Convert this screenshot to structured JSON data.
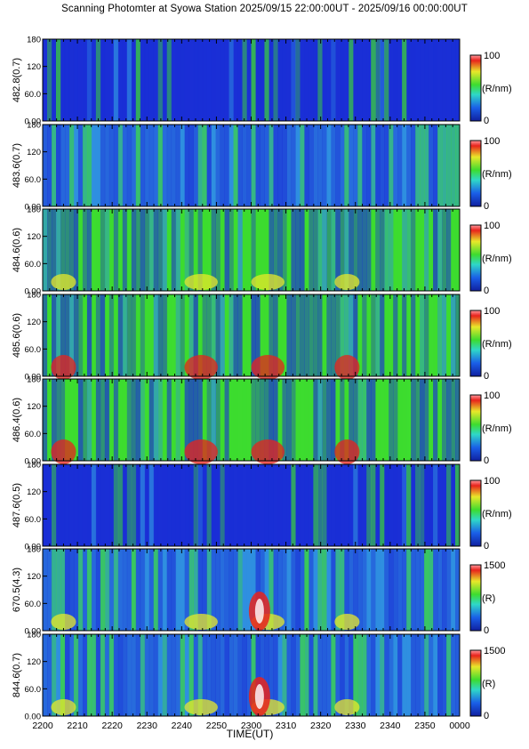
{
  "title": "Scanning Photomter at Syowa Station 2025/09/15 22:00:00UT - 2025/09/16 00:00:00UT",
  "colors": {
    "low": "#1a2fd6",
    "mid_low": "#2f8fe0",
    "mid": "#3ddc2f",
    "mid_high": "#e8e82a",
    "high": "#e8231c",
    "peak": "#ffffff"
  },
  "chart_data": {
    "type": "heatmap",
    "xlabel": "TIME(UT)",
    "x_ticks": [
      "2200",
      "2210",
      "2220",
      "2230",
      "2240",
      "2250",
      "2300",
      "2310",
      "2320",
      "2330",
      "2340",
      "2350",
      "0000"
    ],
    "y_ticks": [
      "0.00",
      "60.0",
      "120",
      "180"
    ],
    "ylim": [
      0,
      180
    ],
    "panels": [
      {
        "ylabel": "482.8(0.7)",
        "unit": "(R/nm)",
        "cmin": "0",
        "cmax": "100",
        "level": 0.25
      },
      {
        "ylabel": "483.6(0.7)",
        "unit": "(R/nm)",
        "cmin": "0",
        "cmax": "100",
        "level": 0.35
      },
      {
        "ylabel": "484.6(0.6)",
        "unit": "(R/nm)",
        "cmin": "0",
        "cmax": "100",
        "level": 0.45
      },
      {
        "ylabel": "485.6(0.6)",
        "unit": "(R/nm)",
        "cmin": "0",
        "cmax": "100",
        "level": 0.58
      },
      {
        "ylabel": "486.4(0.6)",
        "unit": "(R/nm)",
        "cmin": "0",
        "cmax": "100",
        "level": 0.52
      },
      {
        "ylabel": "487.6(0.5)",
        "unit": "(R/nm)",
        "cmin": "0",
        "cmax": "100",
        "level": 0.28
      },
      {
        "ylabel": "670.5(4.3)",
        "unit": "(R)",
        "cmin": "0",
        "cmax": "1500",
        "level": 0.42
      },
      {
        "ylabel": "844.6(0.7)",
        "unit": "(R)",
        "cmin": "0",
        "cmax": "1500",
        "level": 0.42
      }
    ]
  }
}
